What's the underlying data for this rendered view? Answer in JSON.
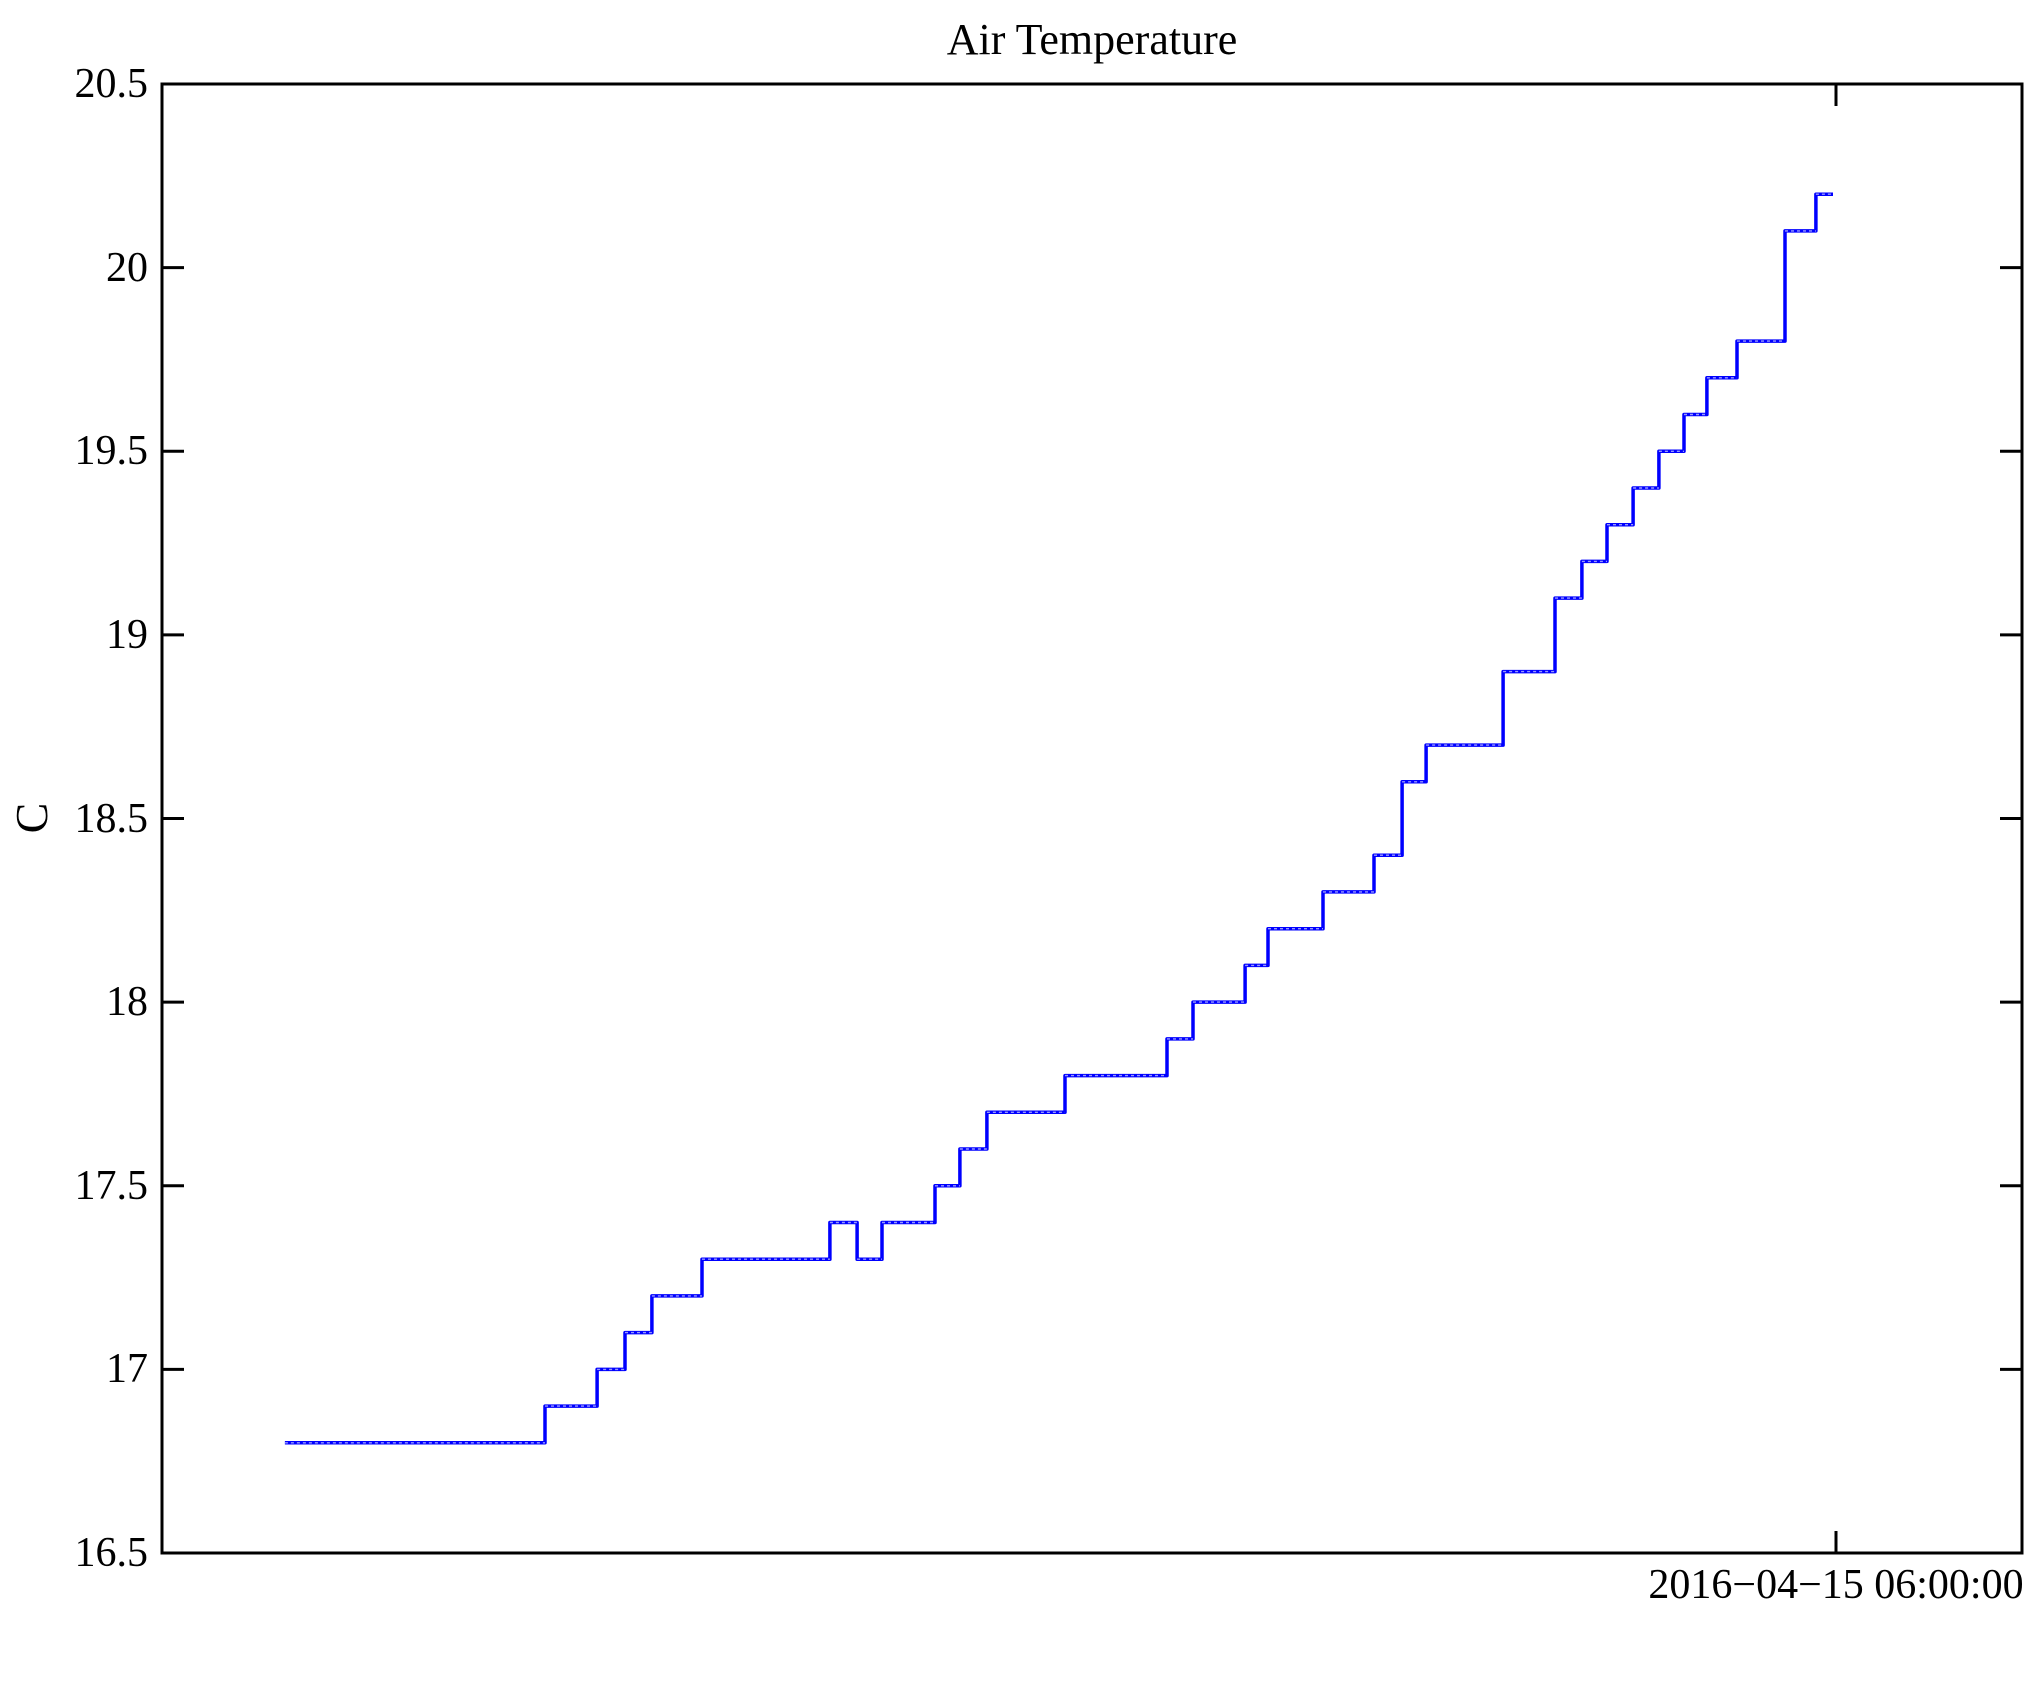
{
  "title": "Air Temperature",
  "y_axis": {
    "label": "C"
  },
  "x_axis": {
    "tick_label": "2016−04−15 06:00:00"
  },
  "chart_data": {
    "type": "line",
    "subtype": "steps",
    "title": "Air Temperature",
    "xlabel": "",
    "ylabel": "C",
    "ylim": [
      16.5,
      20.5
    ],
    "yticks": [
      16.5,
      17,
      17.5,
      18,
      18.5,
      19,
      19.5,
      20,
      20.5
    ],
    "ytick_labels": [
      "16.5",
      "17",
      "17.5",
      "18",
      "18.5",
      "19",
      "19.5",
      "20",
      "20.5"
    ],
    "x_unit": "fraction_of_x_axis",
    "xticks": [
      {
        "pos": 0.9,
        "label": "2016−04−15 06:00:00"
      }
    ],
    "grid": false,
    "legend": "none",
    "line_color": "#0000ff",
    "axis_color": "#000000",
    "series_name": "Air Temperature (C)",
    "segments": [
      {
        "x0": 0.0661,
        "x1": 0.2059,
        "y": 16.8
      },
      {
        "x0": 0.2059,
        "x1": 0.2339,
        "y": 16.9
      },
      {
        "x0": 0.2339,
        "x1": 0.2489,
        "y": 17.0
      },
      {
        "x0": 0.2489,
        "x1": 0.2634,
        "y": 17.1
      },
      {
        "x0": 0.2634,
        "x1": 0.2903,
        "y": 17.2
      },
      {
        "x0": 0.2903,
        "x1": 0.3591,
        "y": 17.3
      },
      {
        "x0": 0.3591,
        "x1": 0.3737,
        "y": 17.4
      },
      {
        "x0": 0.3737,
        "x1": 0.3871,
        "y": 17.3
      },
      {
        "x0": 0.3871,
        "x1": 0.4156,
        "y": 17.4
      },
      {
        "x0": 0.4156,
        "x1": 0.429,
        "y": 17.5
      },
      {
        "x0": 0.429,
        "x1": 0.4435,
        "y": 17.6
      },
      {
        "x0": 0.4435,
        "x1": 0.4855,
        "y": 17.7
      },
      {
        "x0": 0.4855,
        "x1": 0.5403,
        "y": 17.8
      },
      {
        "x0": 0.5403,
        "x1": 0.5543,
        "y": 17.9
      },
      {
        "x0": 0.5543,
        "x1": 0.5823,
        "y": 18.0
      },
      {
        "x0": 0.5823,
        "x1": 0.5946,
        "y": 18.1
      },
      {
        "x0": 0.5946,
        "x1": 0.6242,
        "y": 18.2
      },
      {
        "x0": 0.6242,
        "x1": 0.6516,
        "y": 18.3
      },
      {
        "x0": 0.6516,
        "x1": 0.6667,
        "y": 18.4
      },
      {
        "x0": 0.6667,
        "x1": 0.6796,
        "y": 18.6
      },
      {
        "x0": 0.6796,
        "x1": 0.721,
        "y": 18.7
      },
      {
        "x0": 0.721,
        "x1": 0.7489,
        "y": 18.9
      },
      {
        "x0": 0.7489,
        "x1": 0.7634,
        "y": 19.1
      },
      {
        "x0": 0.7634,
        "x1": 0.7769,
        "y": 19.2
      },
      {
        "x0": 0.7769,
        "x1": 0.7909,
        "y": 19.3
      },
      {
        "x0": 0.7909,
        "x1": 0.8048,
        "y": 19.4
      },
      {
        "x0": 0.8048,
        "x1": 0.8183,
        "y": 19.5
      },
      {
        "x0": 0.8183,
        "x1": 0.8306,
        "y": 19.6
      },
      {
        "x0": 0.8306,
        "x1": 0.8468,
        "y": 19.7
      },
      {
        "x0": 0.8468,
        "x1": 0.8726,
        "y": 19.8
      },
      {
        "x0": 0.8726,
        "x1": 0.8892,
        "y": 20.1
      },
      {
        "x0": 0.8892,
        "x1": 0.8984,
        "y": 20.2
      }
    ]
  }
}
